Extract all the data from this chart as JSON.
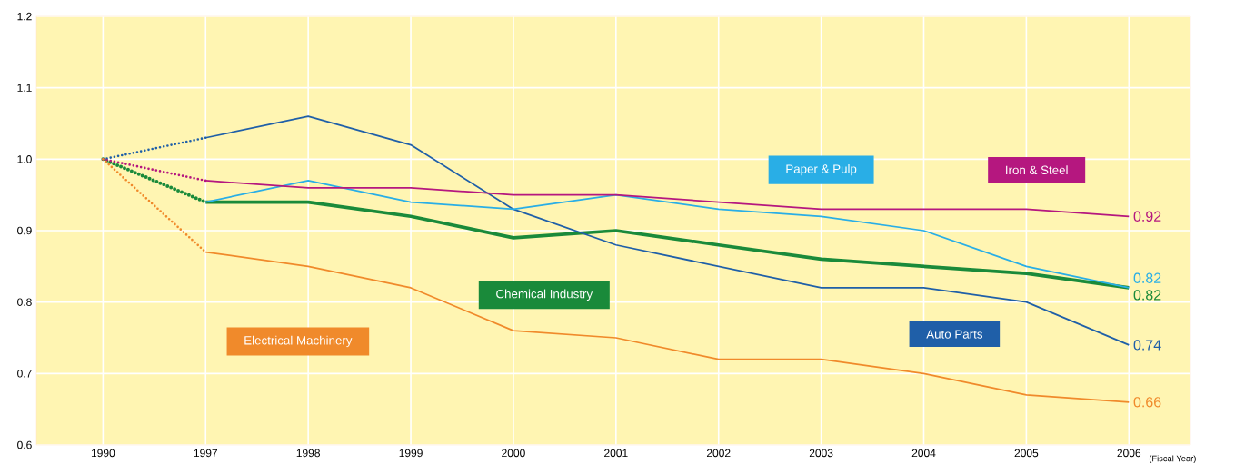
{
  "chart_data": {
    "type": "line",
    "xlabel": "(Fiscal Year)",
    "categories": [
      "1990",
      "1997",
      "1998",
      "1999",
      "2000",
      "2001",
      "2002",
      "2003",
      "2004",
      "2005",
      "2006"
    ],
    "ylim": [
      0.6,
      1.2
    ],
    "yticks": [
      0.6,
      0.7,
      0.8,
      0.9,
      {
        "value": 1.0,
        "label": "1.0"
      },
      1.1,
      1.2
    ],
    "grid": true,
    "marker": "none",
    "series": [
      {
        "color": "#1f5fa8",
        "line_style": "dotted",
        "values": [
          1.0,
          1.03,
          null,
          null,
          null,
          null,
          null,
          null,
          null,
          null,
          null
        ]
      },
      {
        "color": "#b5177f",
        "line_style": "dotted",
        "values": [
          1.0,
          0.97,
          null,
          null,
          null,
          null,
          null,
          null,
          null,
          null,
          null
        ]
      },
      {
        "color": "#1a8a3a",
        "line_style": "dotted",
        "values": [
          1.0,
          0.94,
          null,
          null,
          null,
          null,
          null,
          null,
          null,
          null,
          null
        ]
      },
      {
        "color": "#f08a2b",
        "line_style": "dotted",
        "values": [
          1.0,
          0.87,
          null,
          null,
          null,
          null,
          null,
          null,
          null,
          null,
          null
        ]
      },
      {
        "name": "Auto Parts",
        "color": "#1f5fa8",
        "line_style": "solid",
        "values": [
          null,
          1.03,
          1.06,
          1.02,
          0.93,
          0.88,
          0.85,
          0.82,
          0.82,
          0.8,
          0.74
        ],
        "value_labels": [
          null,
          null,
          null,
          null,
          null,
          null,
          null,
          null,
          null,
          null,
          "0.74"
        ]
      },
      {
        "name": "Paper & Pulp",
        "color": "#29aee6",
        "line_style": "solid",
        "values": [
          null,
          0.94,
          0.97,
          0.94,
          0.93,
          0.95,
          0.93,
          0.92,
          0.9,
          0.85,
          0.82
        ],
        "value_labels": [
          null,
          null,
          null,
          null,
          null,
          null,
          null,
          null,
          null,
          null,
          "0.82"
        ]
      },
      {
        "name": "Iron & Steel",
        "color": "#b5177f",
        "line_style": "solid",
        "values": [
          null,
          0.97,
          0.96,
          0.96,
          0.95,
          0.95,
          0.94,
          0.93,
          0.93,
          0.93,
          0.92
        ],
        "value_labels": [
          null,
          null,
          null,
          null,
          null,
          null,
          null,
          null,
          null,
          null,
          "0.92"
        ]
      },
      {
        "name": "Chemical Industry",
        "color": "#1a8a3a",
        "line_style": "solid",
        "values": [
          null,
          0.94,
          0.94,
          0.92,
          0.89,
          0.9,
          0.88,
          0.86,
          0.85,
          0.84,
          0.82
        ],
        "value_labels": [
          null,
          null,
          null,
          null,
          null,
          null,
          null,
          null,
          null,
          null,
          "0.82"
        ]
      },
      {
        "name": "Electrical Machinery",
        "color": "#f08a2b",
        "line_style": "solid",
        "values": [
          null,
          0.87,
          0.85,
          0.82,
          0.76,
          0.75,
          0.72,
          0.72,
          0.7,
          0.67,
          0.66
        ],
        "value_labels": [
          null,
          null,
          null,
          null,
          null,
          null,
          null,
          null,
          null,
          null,
          "0.66"
        ]
      }
    ]
  }
}
